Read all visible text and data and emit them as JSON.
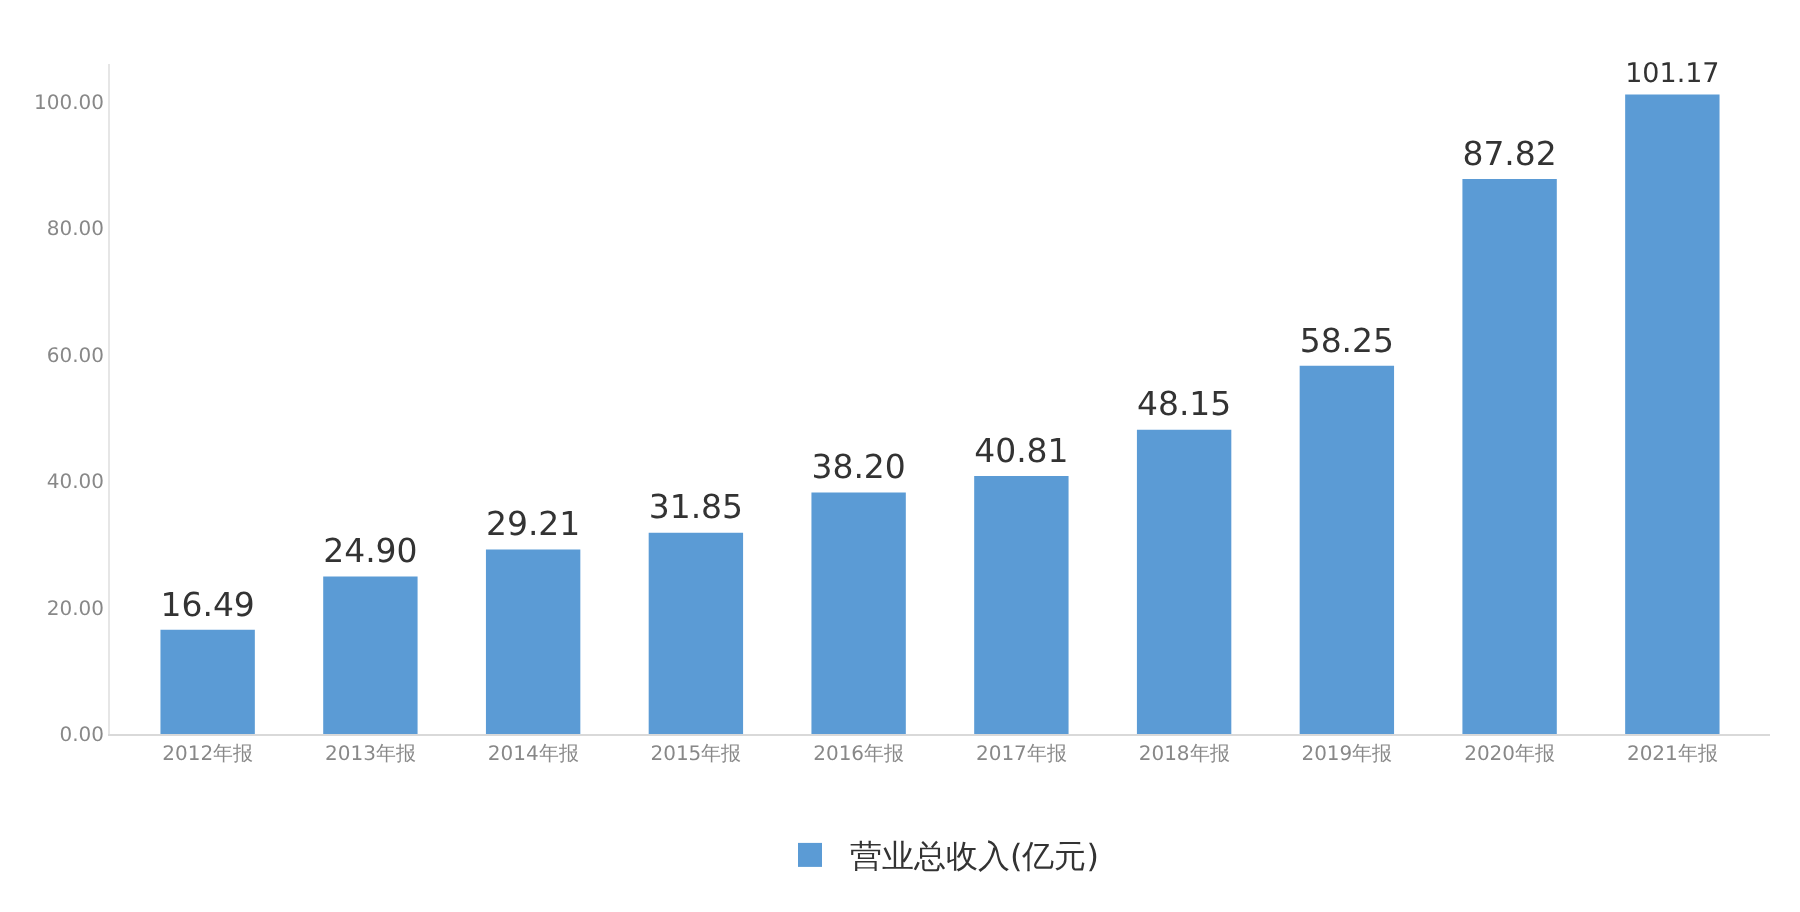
{
  "chart_data": {
    "type": "bar",
    "categories": [
      "2012年报",
      "2013年报",
      "2014年报",
      "2015年报",
      "2016年报",
      "2017年报",
      "2018年报",
      "2019年报",
      "2020年报",
      "2021年报"
    ],
    "series": [
      {
        "name": "营业总收入(亿元)",
        "color": "#5b9bd5",
        "values": [
          16.49,
          24.9,
          29.21,
          31.85,
          38.2,
          40.81,
          48.15,
          58.25,
          87.82,
          101.17
        ],
        "value_labels": [
          "16.49",
          "24.90",
          "29.21",
          "31.85",
          "38.20",
          "40.81",
          "48.15",
          "58.25",
          "87.82",
          "101.17"
        ]
      }
    ],
    "ylim": [
      0,
      106
    ],
    "yticks": [
      {
        "value": 0,
        "label": "0.00"
      },
      {
        "value": 20,
        "label": "20.00"
      },
      {
        "value": 40,
        "label": "40.00"
      },
      {
        "value": 60,
        "label": "60.00"
      },
      {
        "value": 80,
        "label": "80.00"
      },
      {
        "value": 100,
        "label": "100.00"
      }
    ],
    "grid": false,
    "legend": "bottom"
  }
}
